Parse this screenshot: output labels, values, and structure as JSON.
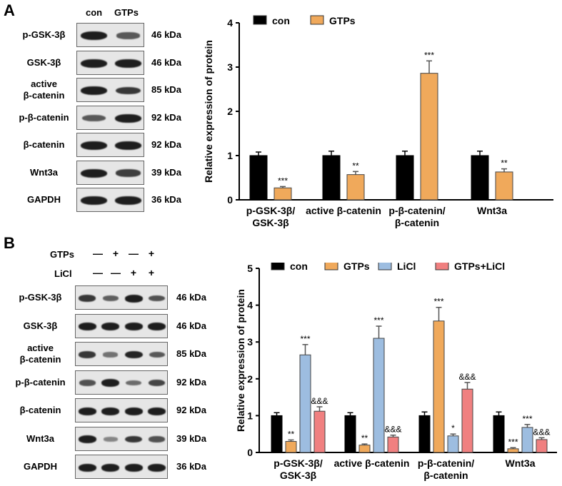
{
  "panel_a": {
    "letter": "A",
    "lanes": [
      "con",
      "GTPs"
    ],
    "blots": [
      {
        "label": "p-GSK-3β",
        "kda": "46 kDa",
        "bands": [
          1.0,
          0.55
        ]
      },
      {
        "label": "GSK-3β",
        "kda": "46 kDa",
        "bands": [
          1.0,
          1.0
        ]
      },
      {
        "label": "active\nβ-catenin",
        "kda": "85 kDa",
        "bands": [
          1.0,
          0.8
        ]
      },
      {
        "label": "p-β-catenin",
        "kda": "92 kDa",
        "bands": [
          0.55,
          1.0
        ]
      },
      {
        "label": "β-catenin",
        "kda": "92 kDa",
        "bands": [
          1.0,
          1.0
        ]
      },
      {
        "label": "Wnt3a",
        "kda": "39 kDa",
        "bands": [
          1.0,
          0.75
        ]
      },
      {
        "label": "GAPDH",
        "kda": "36 kDa",
        "bands": [
          1.0,
          1.0
        ]
      }
    ]
  },
  "panel_b": {
    "letter": "B",
    "treatments": [
      {
        "label": "GTPs",
        "signs": [
          "—",
          "+",
          "—",
          "+"
        ]
      },
      {
        "label": "LiCl",
        "signs": [
          "—",
          "—",
          "+",
          "+"
        ]
      }
    ],
    "blots": [
      {
        "label": "p-GSK-3β",
        "kda": "46 kDa",
        "bands": [
          0.8,
          0.5,
          1.0,
          0.6
        ]
      },
      {
        "label": "GSK-3β",
        "kda": "46 kDa",
        "bands": [
          1.0,
          1.0,
          1.0,
          1.0
        ]
      },
      {
        "label": "active\nβ-catenin",
        "kda": "85 kDa",
        "bands": [
          0.8,
          0.35,
          0.95,
          0.55
        ]
      },
      {
        "label": "p-β-catenin",
        "kda": "92 kDa",
        "bands": [
          0.6,
          1.0,
          0.4,
          0.7
        ]
      },
      {
        "label": "β-catenin",
        "kda": "92 kDa",
        "bands": [
          1.0,
          1.0,
          1.0,
          1.0
        ]
      },
      {
        "label": "Wnt3a",
        "kda": "39 kDa",
        "bands": [
          1.0,
          0.2,
          0.8,
          0.6
        ]
      },
      {
        "label": "GAPDH",
        "kda": "36 kDa",
        "bands": [
          1.0,
          1.0,
          1.0,
          1.0
        ]
      }
    ]
  },
  "chart_data": [
    {
      "type": "bar",
      "ylabel": "Relative  expression of protein",
      "ylim": [
        0,
        4
      ],
      "yticks": [
        "0",
        "1",
        "2",
        "3",
        "4"
      ],
      "categories": [
        "p-GSK-3β/\nGSK-3β",
        "active β-catenin",
        "p-β-catenin/\nβ-catenin",
        "Wnt3a"
      ],
      "series": [
        {
          "name": "con",
          "color": "#000000",
          "values": [
            1.0,
            1.0,
            1.0,
            1.0
          ],
          "errors": [
            0.08,
            0.1,
            0.1,
            0.1
          ],
          "marks": [
            "",
            "",
            "",
            ""
          ]
        },
        {
          "name": "GTPs",
          "color": "#f0a95b",
          "values": [
            0.27,
            0.57,
            2.86,
            0.63
          ],
          "errors": [
            0.03,
            0.07,
            0.28,
            0.07
          ],
          "marks": [
            "***",
            "**",
            "***",
            "**"
          ]
        }
      ]
    },
    {
      "type": "bar",
      "ylabel": "Relative  expression of protein",
      "ylim": [
        0,
        5
      ],
      "yticks": [
        "0",
        "1",
        "2",
        "3",
        "4",
        "5"
      ],
      "categories": [
        "p-GSK-3β/\nGSK-3β",
        "active β-catenin",
        "p-β-catenin/\nβ-catenin",
        "Wnt3a"
      ],
      "series": [
        {
          "name": "con",
          "color": "#000000",
          "values": [
            1.0,
            1.0,
            1.0,
            1.0
          ],
          "errors": [
            0.08,
            0.08,
            0.1,
            0.1
          ],
          "marks": [
            "",
            "",
            "",
            ""
          ]
        },
        {
          "name": "GTPs",
          "color": "#f0a95b",
          "values": [
            0.3,
            0.2,
            3.57,
            0.1
          ],
          "errors": [
            0.04,
            0.03,
            0.37,
            0.03
          ],
          "marks": [
            "**",
            "**",
            "***",
            "***"
          ]
        },
        {
          "name": "LiCl",
          "color": "#9dbde0",
          "values": [
            2.65,
            3.1,
            0.45,
            0.68
          ],
          "errors": [
            0.28,
            0.33,
            0.05,
            0.08
          ],
          "marks": [
            "***",
            "***",
            "*",
            "***"
          ]
        },
        {
          "name": "GTPs+LiCl",
          "color": "#f08080",
          "values": [
            1.12,
            0.42,
            1.72,
            0.35
          ],
          "errors": [
            0.12,
            0.05,
            0.18,
            0.05
          ],
          "marks": [
            "&&&",
            "&&&",
            "&&&",
            "&&&"
          ]
        }
      ]
    }
  ]
}
